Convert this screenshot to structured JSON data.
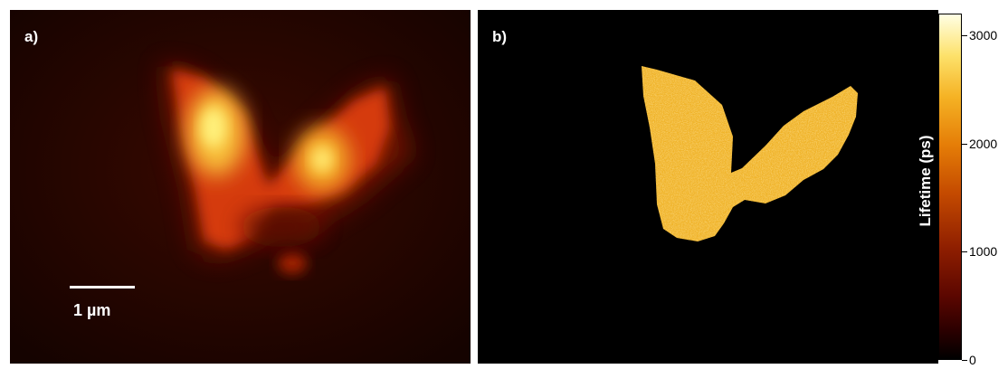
{
  "panel_a": {
    "label": "a)",
    "scalebar_label": "1 µm"
  },
  "panel_b": {
    "label": "b)"
  },
  "colorbar": {
    "title": "Lifetime (ps)",
    "range": [
      0,
      3200
    ],
    "ticks": [
      {
        "value": 3000,
        "label": "3000"
      },
      {
        "value": 2000,
        "label": "2000"
      },
      {
        "value": 1000,
        "label": "1000"
      },
      {
        "value": 0,
        "label": "0"
      }
    ],
    "colormap": "hot"
  },
  "colors": {
    "background": "#ffffff",
    "panel_a_background": "#1a0400",
    "panel_b_background": "#000000",
    "cell_b_fill": "#f2c230"
  }
}
